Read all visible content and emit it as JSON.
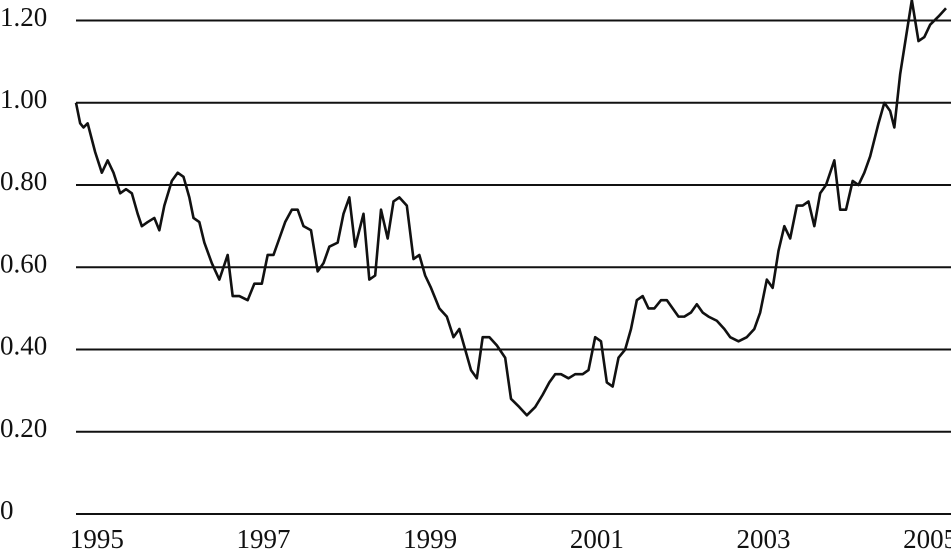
{
  "chart_data": {
    "type": "line",
    "x": [
      1994.75,
      1994.8,
      1994.84,
      1994.89,
      1994.98,
      1995.06,
      1995.13,
      1995.2,
      1995.28,
      1995.35,
      1995.42,
      1995.49,
      1995.54,
      1995.61,
      1995.69,
      1995.75,
      1995.81,
      1995.9,
      1995.97,
      1996.04,
      1996.11,
      1996.16,
      1996.23,
      1996.29,
      1996.38,
      1996.47,
      1996.57,
      1996.63,
      1996.71,
      1996.81,
      1996.89,
      1996.98,
      1997.05,
      1997.12,
      1997.19,
      1997.26,
      1997.34,
      1997.41,
      1997.48,
      1997.57,
      1997.65,
      1997.72,
      1997.79,
      1997.89,
      1997.96,
      1998.03,
      1998.1,
      1998.2,
      1998.27,
      1998.34,
      1998.41,
      1998.49,
      1998.56,
      1998.63,
      1998.72,
      1998.8,
      1998.87,
      1998.94,
      1999.01,
      1999.11,
      1999.2,
      1999.28,
      1999.35,
      1999.42,
      1999.49,
      1999.56,
      1999.63,
      1999.71,
      1999.8,
      1999.9,
      1999.97,
      2000.07,
      2000.16,
      2000.26,
      2000.35,
      2000.43,
      2000.5,
      2000.57,
      2000.66,
      2000.74,
      2000.83,
      2000.9,
      2000.98,
      2001.05,
      2001.12,
      2001.19,
      2001.26,
      2001.34,
      2001.41,
      2001.48,
      2001.55,
      2001.62,
      2001.69,
      2001.77,
      2001.84,
      2001.91,
      2001.98,
      2002.05,
      2002.13,
      2002.2,
      2002.27,
      2002.34,
      2002.44,
      2002.53,
      2002.6,
      2002.7,
      2002.8,
      2002.89,
      2002.96,
      2003.04,
      2003.11,
      2003.18,
      2003.25,
      2003.32,
      2003.4,
      2003.47,
      2003.54,
      2003.61,
      2003.68,
      2003.75,
      2003.85,
      2003.92,
      2003.99,
      2004.07,
      2004.14,
      2004.21,
      2004.28,
      2004.38,
      2004.45,
      2004.52,
      2004.57,
      2004.64,
      2004.71,
      2004.78,
      2004.86,
      2004.93,
      2005.0,
      2005.1,
      2005.19
    ],
    "series": [
      {
        "color": "#111111",
        "values": [
          1.0,
          0.95,
          0.94,
          0.95,
          0.88,
          0.83,
          0.86,
          0.83,
          0.78,
          0.79,
          0.78,
          0.73,
          0.7,
          0.71,
          0.72,
          0.69,
          0.75,
          0.81,
          0.83,
          0.82,
          0.77,
          0.72,
          0.71,
          0.66,
          0.61,
          0.57,
          0.63,
          0.53,
          0.53,
          0.52,
          0.56,
          0.56,
          0.63,
          0.63,
          0.67,
          0.71,
          0.74,
          0.74,
          0.7,
          0.69,
          0.59,
          0.61,
          0.65,
          0.66,
          0.73,
          0.77,
          0.65,
          0.73,
          0.57,
          0.58,
          0.74,
          0.67,
          0.76,
          0.77,
          0.75,
          0.62,
          0.63,
          0.58,
          0.55,
          0.5,
          0.48,
          0.43,
          0.45,
          0.4,
          0.35,
          0.33,
          0.43,
          0.43,
          0.41,
          0.38,
          0.28,
          0.26,
          0.24,
          0.26,
          0.29,
          0.32,
          0.34,
          0.34,
          0.33,
          0.34,
          0.34,
          0.35,
          0.43,
          0.42,
          0.32,
          0.31,
          0.38,
          0.4,
          0.45,
          0.52,
          0.53,
          0.5,
          0.5,
          0.52,
          0.52,
          0.5,
          0.48,
          0.48,
          0.49,
          0.51,
          0.49,
          0.48,
          0.47,
          0.45,
          0.43,
          0.42,
          0.43,
          0.45,
          0.49,
          0.57,
          0.55,
          0.64,
          0.7,
          0.67,
          0.75,
          0.75,
          0.76,
          0.7,
          0.78,
          0.8,
          0.86,
          0.74,
          0.74,
          0.81,
          0.8,
          0.83,
          0.87,
          0.95,
          1.0,
          0.98,
          0.94,
          1.07,
          1.16,
          1.25,
          1.15,
          1.16,
          1.19,
          1.21,
          1.23
        ]
      }
    ],
    "xlim": [
      1994.75,
      2005.25
    ],
    "xticks": [
      1995,
      1997,
      1999,
      2001,
      2003,
      2005
    ],
    "ylim": [
      0,
      1.25
    ],
    "yticks": [
      0,
      {
        "value": 0.2,
        "label": "0.20"
      },
      {
        "value": 0.4,
        "label": "0.40"
      },
      {
        "value": 0.6,
        "label": "0.60"
      },
      {
        "value": 0.8,
        "label": "0.80"
      },
      {
        "value": 1.0,
        "label": "1.00"
      },
      {
        "value": 1.2,
        "label": "1.20"
      }
    ],
    "grid": true
  }
}
